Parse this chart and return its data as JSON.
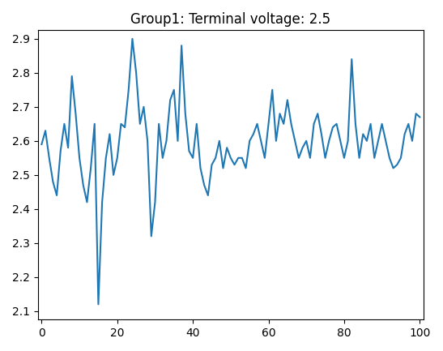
{
  "title": "Group1: Terminal voltage: 2.5",
  "y": [
    2.59,
    2.63,
    2.55,
    2.48,
    2.44,
    2.57,
    2.65,
    2.58,
    2.79,
    2.68,
    2.55,
    2.47,
    2.42,
    2.52,
    2.65,
    2.12,
    2.42,
    2.55,
    2.62,
    2.5,
    2.55,
    2.65,
    2.64,
    2.75,
    2.9,
    2.8,
    2.65,
    2.7,
    2.6,
    2.32,
    2.42,
    2.65,
    2.55,
    2.6,
    2.72,
    2.75,
    2.6,
    2.88,
    2.68,
    2.57,
    2.55,
    2.65,
    2.52,
    2.47,
    2.44,
    2.53,
    2.55,
    2.6,
    2.52,
    2.58,
    2.55,
    2.53,
    2.55,
    2.55,
    2.52,
    2.6,
    2.62,
    2.65,
    2.6,
    2.55,
    2.65,
    2.75,
    2.6,
    2.68,
    2.65,
    2.72,
    2.65,
    2.6,
    2.55,
    2.58,
    2.6,
    2.55,
    2.65,
    2.68,
    2.62,
    2.55,
    2.6,
    2.64,
    2.65,
    2.6,
    2.55,
    2.6,
    2.84,
    2.65,
    2.55,
    2.62,
    2.6,
    2.65,
    2.55,
    2.6,
    2.65,
    2.6,
    2.55,
    2.52,
    2.53,
    2.55,
    2.62,
    2.65,
    2.6,
    2.68,
    2.67
  ],
  "line_color": "#1f77b4",
  "line_width": 1.5,
  "ylim": [
    2.075,
    2.925
  ],
  "xlim": [
    -1,
    101
  ],
  "yticks": [
    2.1,
    2.2,
    2.3,
    2.4,
    2.5,
    2.6,
    2.7,
    2.8,
    2.9
  ],
  "xticks": [
    0,
    20,
    40,
    60,
    80,
    100
  ],
  "figsize": [
    5.47,
    4.33
  ],
  "dpi": 100,
  "seed": 42,
  "mean": 2.5,
  "noise_std": 0.12
}
